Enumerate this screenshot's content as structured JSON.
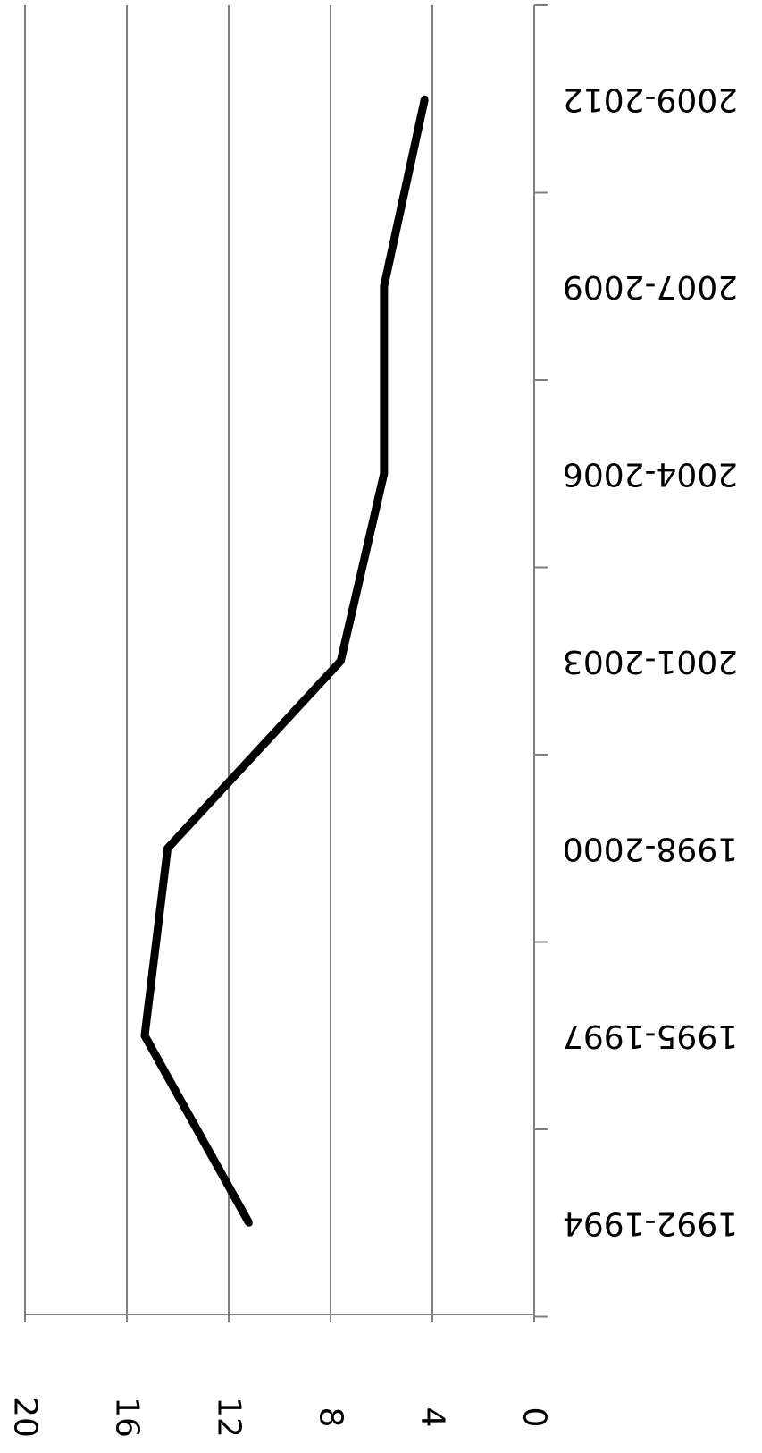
{
  "chart_data": {
    "type": "line",
    "orientation": "rotated-upside-down",
    "categories": [
      "1992-1994",
      "1995-1997",
      "1998-2000",
      "2001-2003",
      "2004-2006",
      "2007-2009",
      "2009-2012"
    ],
    "series": [
      {
        "values": [
          11.2,
          15.3,
          14.4,
          7.6,
          5.9,
          5.9,
          4.3
        ]
      }
    ],
    "y_ticks": [
      0,
      4,
      8,
      12,
      16,
      20
    ],
    "y_tick_labels": [
      "0",
      "4",
      "8",
      "12",
      "16",
      "20"
    ],
    "ylim": [
      0,
      20
    ],
    "title": "",
    "xlabel": "",
    "ylabel": "",
    "grid": true,
    "legend": "none",
    "colors": {
      "line": "#000000",
      "grid": "#7f7f7f",
      "axis": "#7f7f7f",
      "text": "#000000"
    }
  }
}
